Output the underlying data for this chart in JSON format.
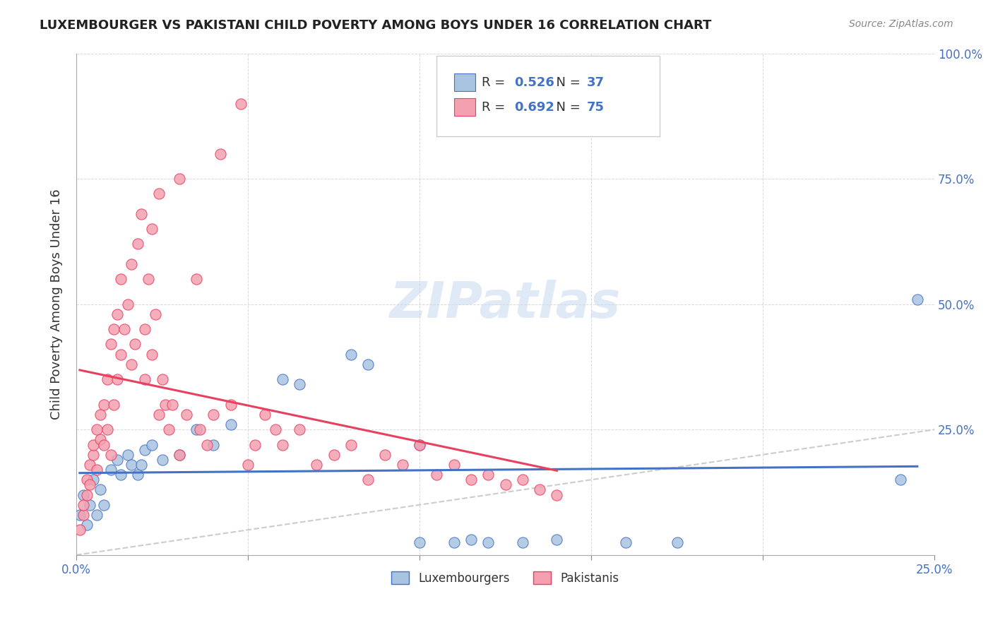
{
  "title": "LUXEMBOURGER VS PAKISTANI CHILD POVERTY AMONG BOYS UNDER 16 CORRELATION CHART",
  "source": "Source: ZipAtlas.com",
  "xlabel": "",
  "ylabel": "Child Poverty Among Boys Under 16",
  "xlim": [
    0.0,
    0.25
  ],
  "ylim": [
    0.0,
    1.0
  ],
  "xticks": [
    0.0,
    0.05,
    0.1,
    0.15,
    0.2,
    0.25
  ],
  "yticks": [
    0.0,
    0.25,
    0.5,
    0.75,
    1.0
  ],
  "xtick_labels": [
    "0.0%",
    "",
    "",
    "",
    "",
    "25.0%"
  ],
  "ytick_labels": [
    "",
    "25.0%",
    "50.0%",
    "75.0%",
    "100.0%"
  ],
  "lux_color": "#a8c4e0",
  "pak_color": "#f4a0b0",
  "lux_line_color": "#4472c4",
  "pak_line_color": "#e84060",
  "lux_R": 0.526,
  "lux_N": 37,
  "pak_R": 0.692,
  "pak_N": 75,
  "watermark": "ZIPatlas",
  "background_color": "#ffffff",
  "diagonal_line_color": "#c0c0c0",
  "lux_scatter": [
    [
      0.001,
      0.08
    ],
    [
      0.002,
      0.12
    ],
    [
      0.003,
      0.06
    ],
    [
      0.004,
      0.1
    ],
    [
      0.005,
      0.15
    ],
    [
      0.006,
      0.08
    ],
    [
      0.007,
      0.13
    ],
    [
      0.008,
      0.1
    ],
    [
      0.01,
      0.17
    ],
    [
      0.012,
      0.19
    ],
    [
      0.013,
      0.16
    ],
    [
      0.015,
      0.2
    ],
    [
      0.016,
      0.18
    ],
    [
      0.018,
      0.16
    ],
    [
      0.019,
      0.18
    ],
    [
      0.02,
      0.21
    ],
    [
      0.022,
      0.22
    ],
    [
      0.025,
      0.19
    ],
    [
      0.03,
      0.2
    ],
    [
      0.035,
      0.25
    ],
    [
      0.04,
      0.22
    ],
    [
      0.045,
      0.26
    ],
    [
      0.06,
      0.35
    ],
    [
      0.065,
      0.34
    ],
    [
      0.08,
      0.4
    ],
    [
      0.085,
      0.38
    ],
    [
      0.1,
      0.22
    ],
    [
      0.1,
      0.025
    ],
    [
      0.11,
      0.025
    ],
    [
      0.115,
      0.03
    ],
    [
      0.12,
      0.025
    ],
    [
      0.13,
      0.025
    ],
    [
      0.14,
      0.03
    ],
    [
      0.16,
      0.025
    ],
    [
      0.175,
      0.025
    ],
    [
      0.24,
      0.15
    ],
    [
      0.245,
      0.51
    ]
  ],
  "pak_scatter": [
    [
      0.001,
      0.05
    ],
    [
      0.002,
      0.08
    ],
    [
      0.002,
      0.1
    ],
    [
      0.003,
      0.12
    ],
    [
      0.003,
      0.15
    ],
    [
      0.004,
      0.14
    ],
    [
      0.004,
      0.18
    ],
    [
      0.005,
      0.2
    ],
    [
      0.005,
      0.22
    ],
    [
      0.006,
      0.17
    ],
    [
      0.006,
      0.25
    ],
    [
      0.007,
      0.23
    ],
    [
      0.007,
      0.28
    ],
    [
      0.008,
      0.22
    ],
    [
      0.008,
      0.3
    ],
    [
      0.009,
      0.25
    ],
    [
      0.009,
      0.35
    ],
    [
      0.01,
      0.2
    ],
    [
      0.01,
      0.42
    ],
    [
      0.011,
      0.3
    ],
    [
      0.011,
      0.45
    ],
    [
      0.012,
      0.35
    ],
    [
      0.012,
      0.48
    ],
    [
      0.013,
      0.4
    ],
    [
      0.013,
      0.55
    ],
    [
      0.014,
      0.45
    ],
    [
      0.015,
      0.5
    ],
    [
      0.016,
      0.38
    ],
    [
      0.016,
      0.58
    ],
    [
      0.017,
      0.42
    ],
    [
      0.018,
      0.62
    ],
    [
      0.019,
      0.68
    ],
    [
      0.02,
      0.35
    ],
    [
      0.02,
      0.45
    ],
    [
      0.021,
      0.55
    ],
    [
      0.022,
      0.4
    ],
    [
      0.022,
      0.65
    ],
    [
      0.023,
      0.48
    ],
    [
      0.024,
      0.28
    ],
    [
      0.024,
      0.72
    ],
    [
      0.025,
      0.35
    ],
    [
      0.026,
      0.3
    ],
    [
      0.027,
      0.25
    ],
    [
      0.028,
      0.3
    ],
    [
      0.03,
      0.2
    ],
    [
      0.03,
      0.75
    ],
    [
      0.032,
      0.28
    ],
    [
      0.035,
      0.55
    ],
    [
      0.036,
      0.25
    ],
    [
      0.038,
      0.22
    ],
    [
      0.04,
      0.28
    ],
    [
      0.042,
      0.8
    ],
    [
      0.045,
      0.3
    ],
    [
      0.048,
      0.9
    ],
    [
      0.05,
      0.18
    ],
    [
      0.052,
      0.22
    ],
    [
      0.055,
      0.28
    ],
    [
      0.058,
      0.25
    ],
    [
      0.06,
      0.22
    ],
    [
      0.065,
      0.25
    ],
    [
      0.07,
      0.18
    ],
    [
      0.075,
      0.2
    ],
    [
      0.08,
      0.22
    ],
    [
      0.085,
      0.15
    ],
    [
      0.09,
      0.2
    ],
    [
      0.095,
      0.18
    ],
    [
      0.1,
      0.22
    ],
    [
      0.105,
      0.16
    ],
    [
      0.11,
      0.18
    ],
    [
      0.115,
      0.15
    ],
    [
      0.12,
      0.16
    ],
    [
      0.125,
      0.14
    ],
    [
      0.13,
      0.15
    ],
    [
      0.135,
      0.13
    ],
    [
      0.14,
      0.12
    ]
  ]
}
